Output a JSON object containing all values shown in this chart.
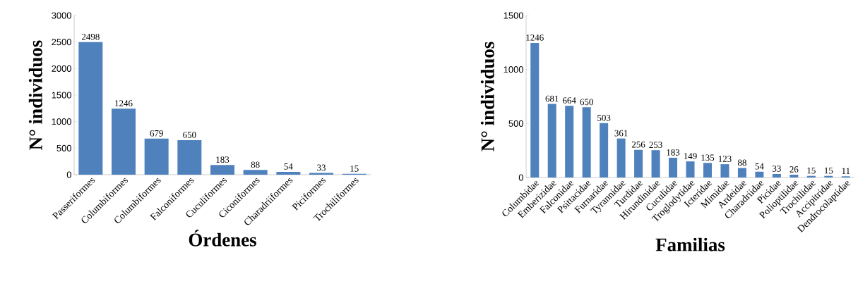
{
  "chart_data": [
    {
      "type": "bar",
      "xlabel": "Órdenes",
      "ylabel": "N° individuos",
      "categories": [
        "Passeriformes",
        "Columbiformes",
        "Columbiformes",
        "Falconiformes",
        "Cuculiformes",
        "Ciconiformes",
        "Charadriiformes",
        "Piciformes",
        "Trochiliformes"
      ],
      "values": [
        2498,
        1246,
        679,
        650,
        183,
        88,
        54,
        33,
        15
      ],
      "color": "#4f81bd",
      "ylim": [
        0,
        3000
      ],
      "yticks": [
        0,
        500,
        1000,
        1500,
        2000,
        2500,
        3000
      ],
      "data_labels": true
    },
    {
      "type": "bar",
      "xlabel": "Familias",
      "ylabel": "N° individuos",
      "categories": [
        "Columbidae",
        "Emberizidae",
        "Falconidae",
        "Psittacidae",
        "Furnaridae",
        "Tyrannidae",
        "Turdidae",
        "Hirundinidae",
        "Cuculidae",
        "Troglodytidae",
        "Icteridae",
        "Mimidae",
        "Ardeidae",
        "Charadriidae",
        "Picidae",
        "Polioptilidae",
        "Trochilidae",
        "Accipitridae",
        "Dendrocolaptidae"
      ],
      "values": [
        1246,
        681,
        664,
        650,
        503,
        361,
        256,
        253,
        183,
        149,
        135,
        123,
        88,
        54,
        33,
        26,
        15,
        15,
        11
      ],
      "color": "#4f81bd",
      "ylim": [
        0,
        1500
      ],
      "yticks": [
        0,
        500,
        1000,
        1500
      ],
      "data_labels": true
    }
  ]
}
